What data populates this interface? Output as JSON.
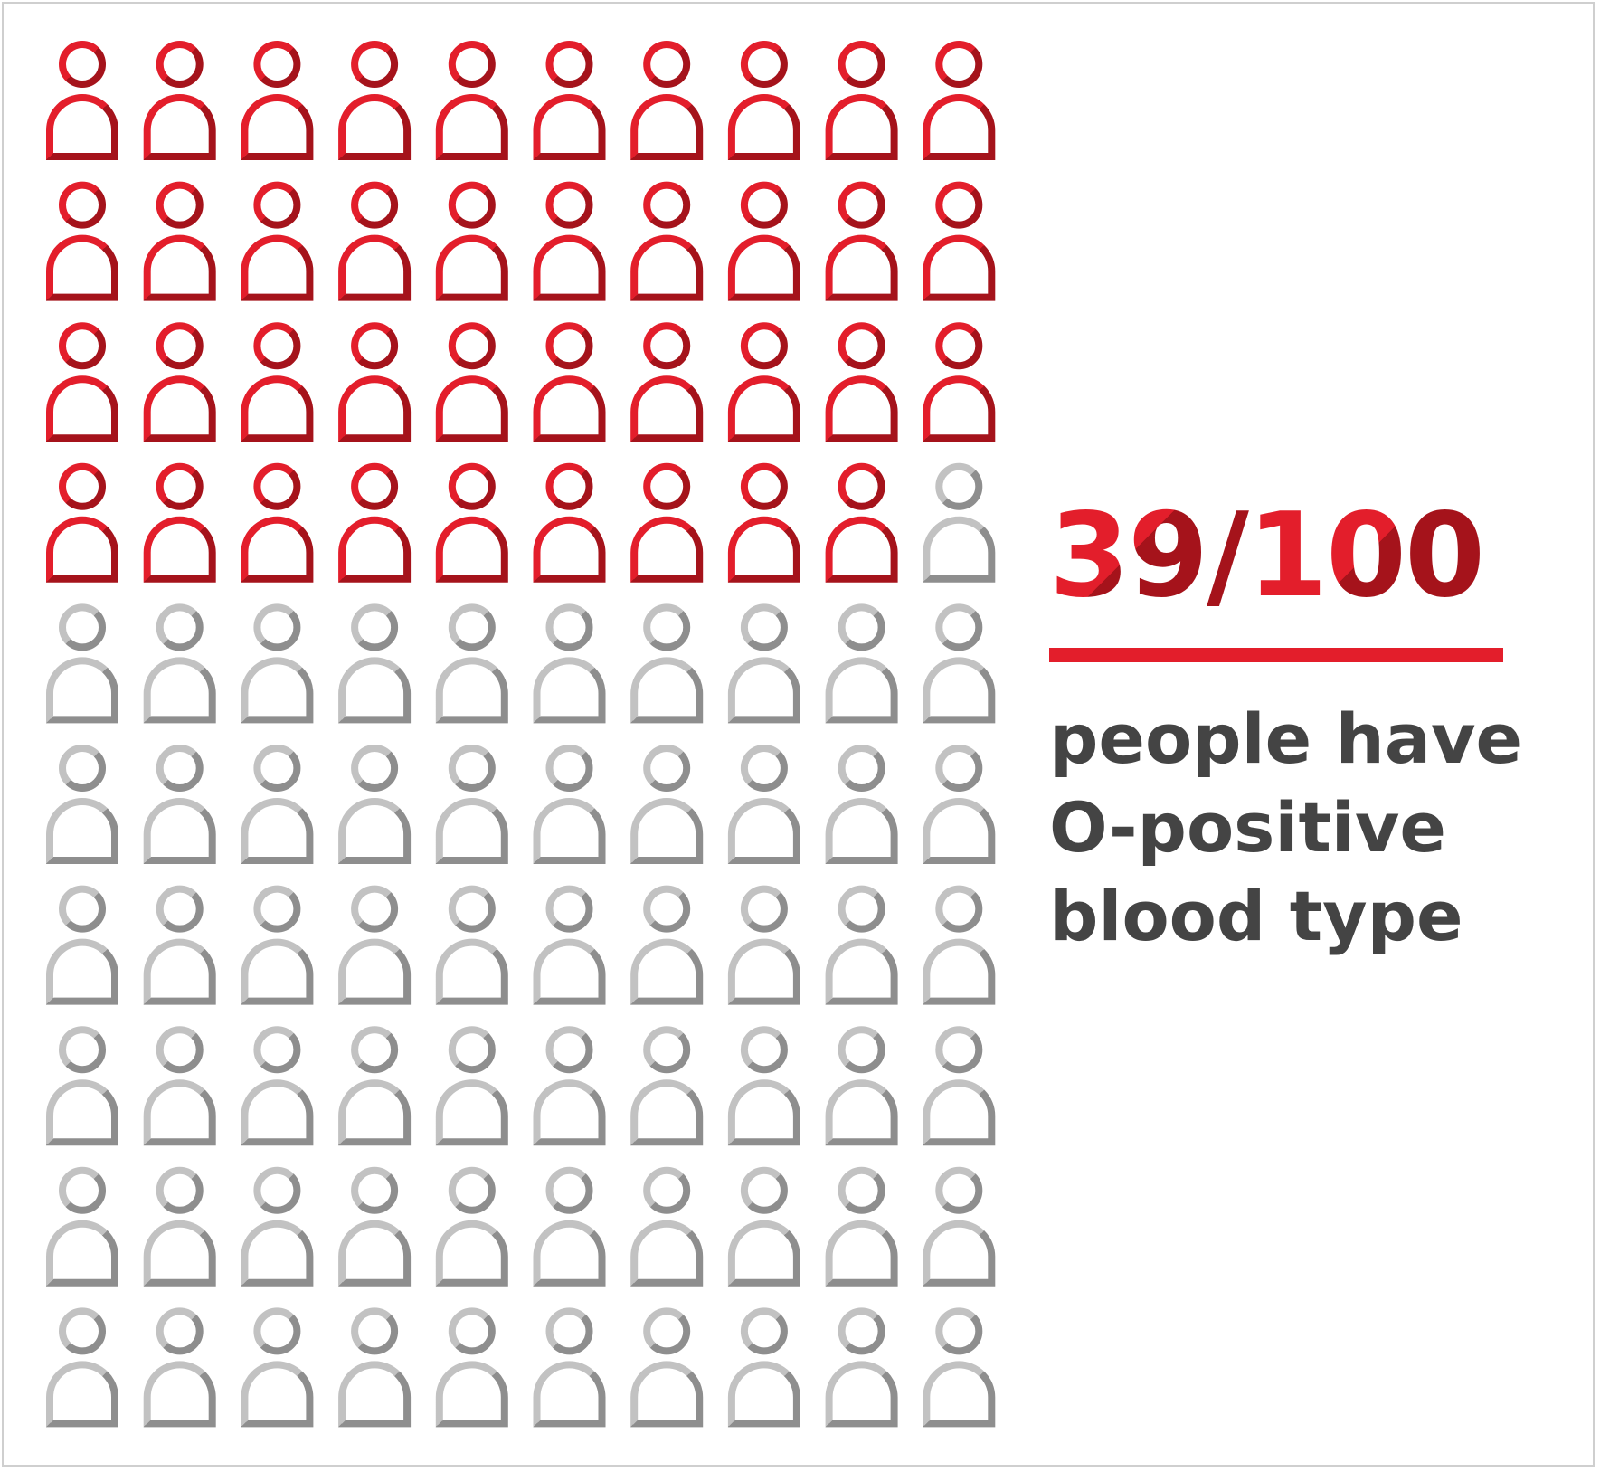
{
  "colors": {
    "highlight": "#e31e2b",
    "highlight_dark": "#a5131b",
    "neutral": "#8e8e8e",
    "neutral_light": "#c2c2c2",
    "caption": "#444444",
    "frame": "#cfcfcf"
  },
  "chart_data": {
    "type": "pictogram",
    "total": 100,
    "highlighted": 39,
    "columns": 10,
    "rows": 10,
    "icon": "person-icon",
    "fill_order": "row-major from top-left"
  },
  "stat": {
    "numerator": "39",
    "separator": "/",
    "denominator": "100",
    "caption_lines": [
      "people have",
      "O-positive",
      "blood type"
    ]
  }
}
